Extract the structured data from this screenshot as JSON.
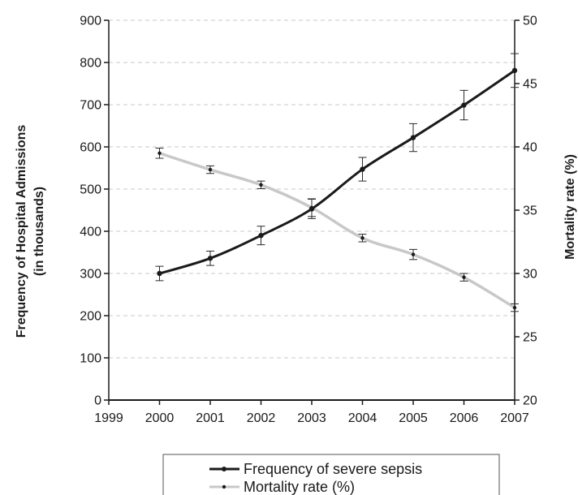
{
  "chart_data": {
    "type": "line",
    "x": [
      2000,
      2001,
      2002,
      2003,
      2004,
      2005,
      2006,
      2007
    ],
    "x_ticks": [
      "1999",
      "2000",
      "2001",
      "2002",
      "2003",
      "2004",
      "2005",
      "2006",
      "2007"
    ],
    "xlim": [
      1999,
      2007
    ],
    "left_axis": {
      "label_line1": "Frequency of Hospital Admissions",
      "label_line2": "(in thousands)",
      "ylim": [
        0,
        900
      ],
      "ticks": [
        "0",
        "100",
        "200",
        "300",
        "400",
        "500",
        "600",
        "700",
        "800",
        "900"
      ]
    },
    "right_axis": {
      "label": "Mortality rate (%)",
      "ylim": [
        20,
        50
      ],
      "ticks": [
        "20",
        "25",
        "30",
        "35",
        "40",
        "45",
        "50"
      ]
    },
    "grid": "horizontal dashed",
    "legend_position": "bottom",
    "series": [
      {
        "name": "Frequency of severe sepsis",
        "axis": "left",
        "color": "#1a1a1a",
        "values": [
          300,
          336,
          390,
          453,
          547,
          622,
          699,
          781
        ],
        "error": [
          17,
          17,
          22,
          23,
          28,
          33,
          35,
          40
        ]
      },
      {
        "name": "Mortality rate (%)",
        "axis": "right",
        "color": "#c8c8c8",
        "values": [
          39.5,
          38.2,
          37.0,
          35.2,
          32.8,
          31.5,
          29.7,
          27.3
        ],
        "error": [
          0.4,
          0.3,
          0.3,
          0.7,
          0.3,
          0.4,
          0.3,
          0.3
        ]
      }
    ]
  }
}
